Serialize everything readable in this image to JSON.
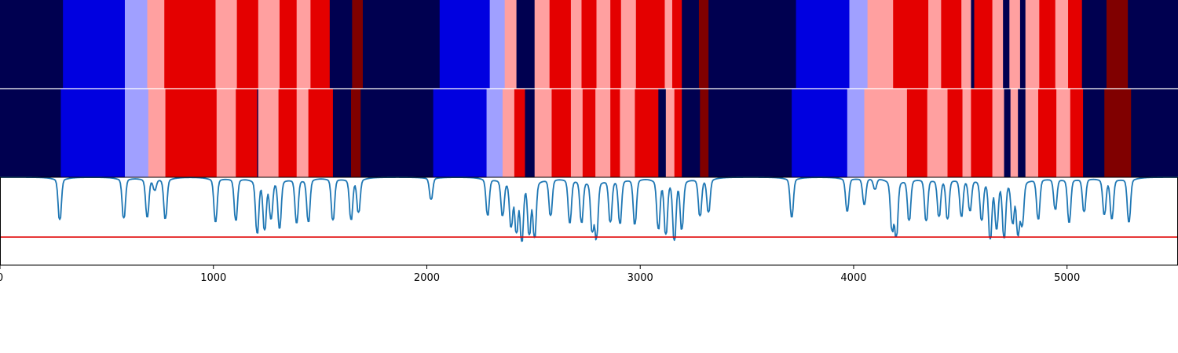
{
  "chart_data": {
    "type": "heatmap",
    "title": "",
    "xlabel": "",
    "ylabel": "",
    "xlim": [
      0,
      5520
    ],
    "x_ticks": [
      0,
      1000,
      2000,
      3000,
      4000,
      5000
    ],
    "x_tick_labels": [
      "0",
      "1000",
      "2000",
      "3000",
      "4000",
      "5000"
    ],
    "state_colors": {
      "0": "#000050",
      "1": "#0000e0",
      "2": "#a0a0ff",
      "3": "#ffa0a0",
      "4": "#e40000",
      "5": "#800000"
    },
    "rows": [
      {
        "name": "",
        "segments": [
          [
            0,
            295,
            0
          ],
          [
            295,
            585,
            1
          ],
          [
            585,
            690,
            2
          ],
          [
            690,
            770,
            3
          ],
          [
            770,
            1010,
            4
          ],
          [
            1010,
            1110,
            3
          ],
          [
            1110,
            1210,
            4
          ],
          [
            1210,
            1310,
            3
          ],
          [
            1310,
            1390,
            4
          ],
          [
            1390,
            1455,
            3
          ],
          [
            1455,
            1545,
            4
          ],
          [
            1545,
            1650,
            0
          ],
          [
            1650,
            1700,
            5
          ],
          [
            1700,
            2060,
            0
          ],
          [
            2060,
            2295,
            1
          ],
          [
            2295,
            2365,
            2
          ],
          [
            2365,
            2420,
            3
          ],
          [
            2420,
            2505,
            0
          ],
          [
            2505,
            2575,
            3
          ],
          [
            2575,
            2675,
            4
          ],
          [
            2675,
            2725,
            3
          ],
          [
            2725,
            2795,
            4
          ],
          [
            2795,
            2860,
            3
          ],
          [
            2860,
            2910,
            4
          ],
          [
            2910,
            2980,
            3
          ],
          [
            2980,
            3115,
            4
          ],
          [
            3115,
            3150,
            3
          ],
          [
            3150,
            3195,
            4
          ],
          [
            3195,
            3275,
            0
          ],
          [
            3275,
            3320,
            5
          ],
          [
            3320,
            3730,
            0
          ],
          [
            3730,
            3980,
            1
          ],
          [
            3980,
            4065,
            2
          ],
          [
            4065,
            4185,
            3
          ],
          [
            4185,
            4350,
            4
          ],
          [
            4350,
            4410,
            3
          ],
          [
            4410,
            4505,
            4
          ],
          [
            4505,
            4550,
            3
          ],
          [
            4550,
            4565,
            0
          ],
          [
            4565,
            4650,
            4
          ],
          [
            4650,
            4700,
            3
          ],
          [
            4700,
            4730,
            0
          ],
          [
            4730,
            4780,
            3
          ],
          [
            4780,
            4805,
            0
          ],
          [
            4805,
            4870,
            3
          ],
          [
            4870,
            4945,
            4
          ],
          [
            4945,
            5005,
            3
          ],
          [
            5005,
            5070,
            4
          ],
          [
            5070,
            5185,
            0
          ],
          [
            5185,
            5285,
            5
          ],
          [
            5285,
            5520,
            0
          ]
        ]
      },
      {
        "name": "",
        "segments": [
          [
            0,
            285,
            0
          ],
          [
            285,
            585,
            1
          ],
          [
            585,
            695,
            2
          ],
          [
            695,
            775,
            3
          ],
          [
            775,
            1015,
            4
          ],
          [
            1015,
            1105,
            3
          ],
          [
            1105,
            1205,
            4
          ],
          [
            1205,
            1210,
            0
          ],
          [
            1210,
            1305,
            3
          ],
          [
            1305,
            1390,
            4
          ],
          [
            1390,
            1445,
            3
          ],
          [
            1445,
            1560,
            4
          ],
          [
            1560,
            1645,
            0
          ],
          [
            1645,
            1690,
            5
          ],
          [
            1690,
            2030,
            0
          ],
          [
            2030,
            2280,
            1
          ],
          [
            2280,
            2355,
            2
          ],
          [
            2355,
            2410,
            3
          ],
          [
            2410,
            2460,
            4
          ],
          [
            2460,
            2505,
            0
          ],
          [
            2505,
            2585,
            3
          ],
          [
            2585,
            2675,
            4
          ],
          [
            2675,
            2730,
            3
          ],
          [
            2730,
            2790,
            4
          ],
          [
            2790,
            2860,
            3
          ],
          [
            2860,
            2905,
            4
          ],
          [
            2905,
            2975,
            3
          ],
          [
            2975,
            3085,
            4
          ],
          [
            3085,
            3120,
            0
          ],
          [
            3120,
            3160,
            3
          ],
          [
            3160,
            3195,
            4
          ],
          [
            3195,
            3280,
            0
          ],
          [
            3280,
            3320,
            5
          ],
          [
            3320,
            3710,
            0
          ],
          [
            3710,
            3970,
            1
          ],
          [
            3970,
            4050,
            2
          ],
          [
            4050,
            4250,
            3
          ],
          [
            4250,
            4345,
            4
          ],
          [
            4345,
            4440,
            3
          ],
          [
            4440,
            4510,
            4
          ],
          [
            4510,
            4550,
            3
          ],
          [
            4550,
            4650,
            4
          ],
          [
            4650,
            4705,
            3
          ],
          [
            4705,
            4735,
            0
          ],
          [
            4735,
            4770,
            3
          ],
          [
            4770,
            4805,
            0
          ],
          [
            4805,
            4865,
            3
          ],
          [
            4865,
            4950,
            4
          ],
          [
            4950,
            5015,
            3
          ],
          [
            5015,
            5075,
            4
          ],
          [
            5075,
            5175,
            0
          ],
          [
            5175,
            5300,
            5
          ],
          [
            5300,
            5520,
            0
          ]
        ]
      }
    ],
    "line_series": {
      "name": "",
      "color": "#1f77b4",
      "ylim": [
        -1.0,
        0.0
      ],
      "baseline": 0.0,
      "dips": [
        [
          280,
          0.48
        ],
        [
          580,
          0.46
        ],
        [
          690,
          0.44
        ],
        [
          725,
          0.12
        ],
        [
          775,
          0.46
        ],
        [
          1010,
          0.5
        ],
        [
          1105,
          0.48
        ],
        [
          1205,
          0.6
        ],
        [
          1240,
          0.55
        ],
        [
          1270,
          0.42
        ],
        [
          1310,
          0.55
        ],
        [
          1390,
          0.5
        ],
        [
          1445,
          0.49
        ],
        [
          1560,
          0.48
        ],
        [
          1645,
          0.46
        ],
        [
          1680,
          0.38
        ],
        [
          2020,
          0.25
        ],
        [
          2285,
          0.42
        ],
        [
          2355,
          0.4
        ],
        [
          2395,
          0.5
        ],
        [
          2420,
          0.55
        ],
        [
          2445,
          0.65
        ],
        [
          2480,
          0.58
        ],
        [
          2505,
          0.63
        ],
        [
          2580,
          0.42
        ],
        [
          2670,
          0.5
        ],
        [
          2725,
          0.48
        ],
        [
          2775,
          0.55
        ],
        [
          2795,
          0.63
        ],
        [
          2860,
          0.48
        ],
        [
          2905,
          0.5
        ],
        [
          2975,
          0.52
        ],
        [
          3085,
          0.55
        ],
        [
          3120,
          0.6
        ],
        [
          3160,
          0.67
        ],
        [
          3195,
          0.55
        ],
        [
          3280,
          0.42
        ],
        [
          3320,
          0.38
        ],
        [
          3710,
          0.45
        ],
        [
          3970,
          0.38
        ],
        [
          4050,
          0.3
        ],
        [
          4100,
          0.12
        ],
        [
          4180,
          0.55
        ],
        [
          4200,
          0.62
        ],
        [
          4260,
          0.47
        ],
        [
          4340,
          0.48
        ],
        [
          4400,
          0.42
        ],
        [
          4440,
          0.45
        ],
        [
          4505,
          0.42
        ],
        [
          4545,
          0.35
        ],
        [
          4600,
          0.45
        ],
        [
          4640,
          0.65
        ],
        [
          4670,
          0.52
        ],
        [
          4705,
          0.63
        ],
        [
          4745,
          0.45
        ],
        [
          4770,
          0.58
        ],
        [
          4790,
          0.48
        ],
        [
          4865,
          0.46
        ],
        [
          4945,
          0.35
        ],
        [
          5010,
          0.5
        ],
        [
          5080,
          0.38
        ],
        [
          5175,
          0.4
        ],
        [
          5210,
          0.45
        ],
        [
          5290,
          0.5
        ]
      ],
      "threshold": {
        "value": -0.68,
        "color": "#e00000"
      }
    }
  }
}
